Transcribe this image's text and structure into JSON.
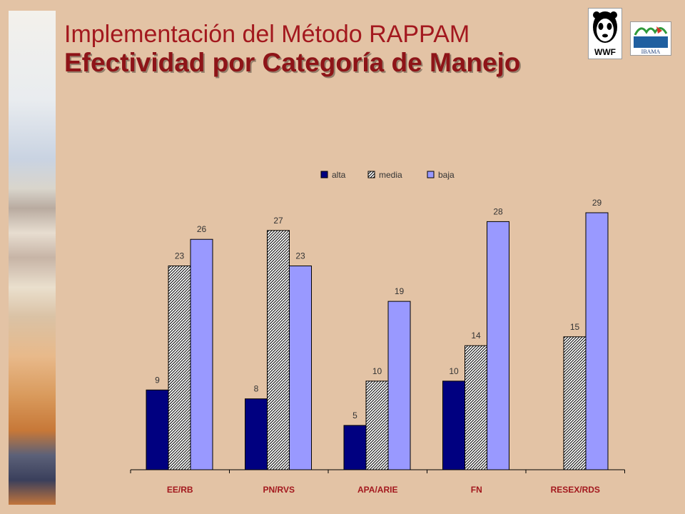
{
  "slide": {
    "title_line1": "Implementación del Método RAPPAM",
    "title_line2": "Efectividad por Categoría de Manejo",
    "logos": {
      "wwf_text": "WWF",
      "ibama_text": "IBAMA"
    }
  },
  "colors": {
    "background": "#e3c3a5",
    "title": "#a3181e",
    "alta": "#000080",
    "media_hatch": "#000000",
    "baja": "#9999ff"
  },
  "chart_data": {
    "type": "bar",
    "categories": [
      "EE/RB",
      "PN/RVS",
      "APA/ARIE",
      "FN",
      "RESEX/RDS"
    ],
    "series": [
      {
        "name": "alta",
        "values": [
          9,
          8,
          5,
          10,
          null
        ],
        "fill": "solid"
      },
      {
        "name": "media",
        "values": [
          23,
          27,
          10,
          14,
          15
        ],
        "fill": "hatched"
      },
      {
        "name": "baja",
        "values": [
          26,
          23,
          19,
          28,
          29
        ],
        "fill": "solid"
      }
    ],
    "title": "",
    "xlabel": "",
    "ylabel": "",
    "ylim": [
      0,
      29
    ],
    "grid": false,
    "legend_position": "top",
    "data_labels": true
  }
}
